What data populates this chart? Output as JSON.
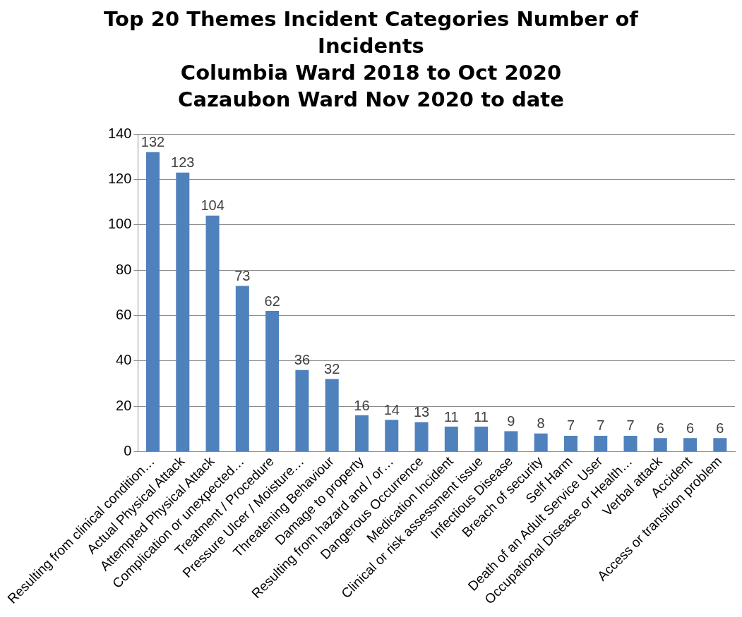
{
  "chart_data": {
    "type": "bar",
    "title": "Top 20 Themes Incident Categories Number of Incidents\nColumbia Ward 2018 to Oct 2020\nCazaubon Ward Nov 2020 to date",
    "categories": [
      "Resulting from clinical condition…",
      "Actual Physical Attack",
      "Attempted Physical Attack",
      "Complication or unexpected…",
      "Treatment / Procedure",
      "Pressure Ulcer / Moisture…",
      "Threatening Behaviour",
      "Damage to property",
      "Resulting from hazard and / or…",
      "Dangerous Occurrence",
      "Medication Incident",
      "Clinical or risk assessment issue",
      "Infectious Disease",
      "Breach of security",
      "Self Harm",
      "Death of an Adult Service User",
      "Occupational Disease or Health…",
      "Verbal attack",
      "Accident",
      "Access or transition problem"
    ],
    "values": [
      132,
      123,
      104,
      73,
      62,
      36,
      32,
      16,
      14,
      13,
      11,
      11,
      9,
      8,
      7,
      7,
      7,
      6,
      6,
      6
    ],
    "color": "#4f81bd",
    "ylim": [
      0,
      140
    ],
    "yticks": [
      0,
      20,
      40,
      60,
      80,
      100,
      120,
      140
    ],
    "grid": "y",
    "data_labels": true
  }
}
